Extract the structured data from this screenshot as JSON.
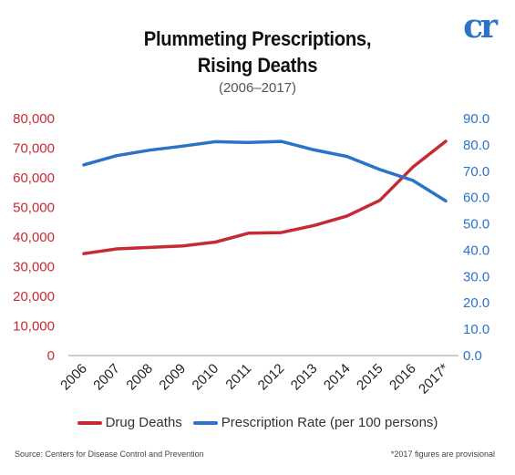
{
  "header": {
    "title_line1": "Plummeting Prescriptions,",
    "title_line2": "Rising Deaths",
    "subtitle": "(2006–2017)",
    "logo": "cr"
  },
  "footer": {
    "source": "Source: Centers for Disease Control and Prevention",
    "footnote": "*2017 figures are provisional"
  },
  "colors": {
    "drug_deaths": "#c62a33",
    "prescription_rate": "#2a73c8"
  },
  "chart_data": {
    "type": "line",
    "title": "Plummeting Prescriptions, Rising Deaths",
    "subtitle": "(2006–2017)",
    "categories": [
      "2006",
      "2007",
      "2008",
      "2009",
      "2010",
      "2011",
      "2012",
      "2013",
      "2014",
      "2015",
      "2016",
      "2017*"
    ],
    "left_axis": {
      "ylim": [
        0,
        80000
      ],
      "ticks": [
        "0",
        "10,000",
        "20,000",
        "30,000",
        "40,000",
        "50,000",
        "60,000",
        "70,000",
        "80,000"
      ]
    },
    "right_axis": {
      "ylim": [
        0,
        90
      ],
      "ticks": [
        "0.0",
        "10.0",
        "20.0",
        "30.0",
        "40.0",
        "50.0",
        "60.0",
        "70.0",
        "80.0",
        "90.0"
      ]
    },
    "series": [
      {
        "name": "Drug Deaths",
        "axis": "left",
        "values": [
          34400,
          36000,
          36500,
          37000,
          38300,
          41300,
          41500,
          43900,
          47100,
          52400,
          63600,
          72300
        ]
      },
      {
        "name": "Prescription Rate (per 100 persons)",
        "axis": "right",
        "values": [
          72.4,
          75.9,
          78.0,
          79.5,
          81.2,
          80.9,
          81.3,
          78.1,
          75.6,
          70.6,
          66.5,
          58.7
        ]
      }
    ],
    "legend": "bottom",
    "grid": false
  }
}
